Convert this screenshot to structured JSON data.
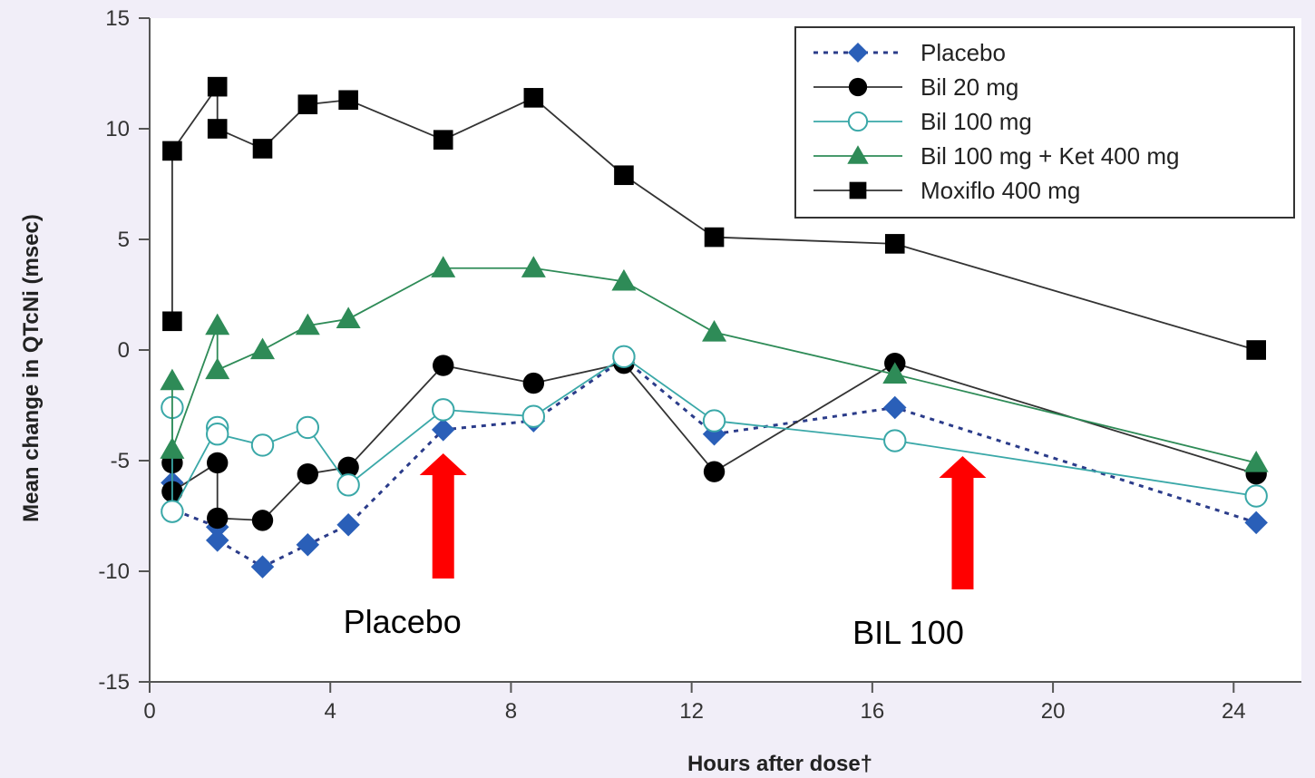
{
  "chart_data": {
    "type": "line",
    "xlabel": "Hours after dose†",
    "ylabel": "Mean change in QTcNi (msec)",
    "xlim": [
      0,
      25.5
    ],
    "ylim": [
      -15,
      15
    ],
    "xticks": [
      0,
      4,
      8,
      12,
      16,
      20,
      24
    ],
    "yticks": [
      15,
      10,
      5,
      0,
      -5,
      -10,
      -15
    ],
    "grid": false,
    "legend_position": "top-right",
    "series": [
      {
        "name": "Placebo",
        "color": "#2b3c8a",
        "marker_color": "#2a5fb8",
        "marker": "diamond",
        "line_style": "dotted",
        "x": [
          0.5,
          0.5,
          1.5,
          1.5,
          2.5,
          3.5,
          4.4,
          6.5,
          8.5,
          10.5,
          12.5,
          16.5,
          24.5
        ],
        "y": [
          -6.0,
          -7.2,
          -8.0,
          -8.6,
          -9.8,
          -8.8,
          -7.9,
          -3.6,
          -3.2,
          -0.4,
          -3.8,
          -2.6,
          -7.8
        ]
      },
      {
        "name": "Bil 20 mg",
        "color": "#333333",
        "marker_color": "#000000",
        "marker": "circle-filled",
        "line_style": "solid",
        "x": [
          0.5,
          0.5,
          1.5,
          1.5,
          2.5,
          3.5,
          4.4,
          6.5,
          8.5,
          10.5,
          12.5,
          16.5,
          24.5
        ],
        "y": [
          -5.1,
          -6.4,
          -5.1,
          -7.6,
          -7.7,
          -5.6,
          -5.3,
          -0.7,
          -1.5,
          -0.6,
          -5.5,
          -0.6,
          -5.6
        ]
      },
      {
        "name": "Bil 100 mg",
        "color": "#3aa8a8",
        "marker_color": "#3aa8a8",
        "marker": "circle-open",
        "line_style": "solid",
        "x": [
          0.5,
          0.5,
          1.5,
          1.5,
          2.5,
          3.5,
          4.4,
          6.5,
          8.5,
          10.5,
          12.5,
          16.5,
          24.5
        ],
        "y": [
          -2.6,
          -7.3,
          -3.5,
          -3.8,
          -4.3,
          -3.5,
          -6.1,
          -2.7,
          -3.0,
          -0.3,
          -3.2,
          -4.1,
          -6.6
        ]
      },
      {
        "name": "Bil 100 mg + Ket 400 mg",
        "color": "#2e8b57",
        "marker_color": "#2e8b57",
        "marker": "triangle",
        "line_style": "solid",
        "x": [
          0.5,
          0.5,
          1.5,
          1.5,
          2.5,
          3.5,
          4.4,
          6.5,
          8.5,
          10.5,
          12.5,
          16.5,
          24.5
        ],
        "y": [
          -1.4,
          -4.5,
          1.1,
          -0.9,
          0.0,
          1.1,
          1.4,
          3.7,
          3.7,
          3.1,
          0.8,
          -1.1,
          -5.1
        ]
      },
      {
        "name": "Moxiflo 400 mg",
        "color": "#333333",
        "marker_color": "#000000",
        "marker": "square",
        "line_style": "solid",
        "x": [
          0.5,
          0.5,
          1.5,
          1.5,
          2.5,
          3.5,
          4.4,
          6.5,
          8.5,
          10.5,
          12.5,
          16.5,
          24.5
        ],
        "y": [
          1.3,
          9.0,
          11.9,
          10.0,
          9.1,
          11.1,
          11.3,
          9.5,
          11.4,
          7.9,
          5.1,
          4.8,
          0.0
        ]
      }
    ],
    "annotations": [
      {
        "text": "Placebo",
        "x": 6.5,
        "color": "#ff0000"
      },
      {
        "text": "BIL 100",
        "x": 18.0,
        "color": "#ff0000"
      }
    ]
  }
}
